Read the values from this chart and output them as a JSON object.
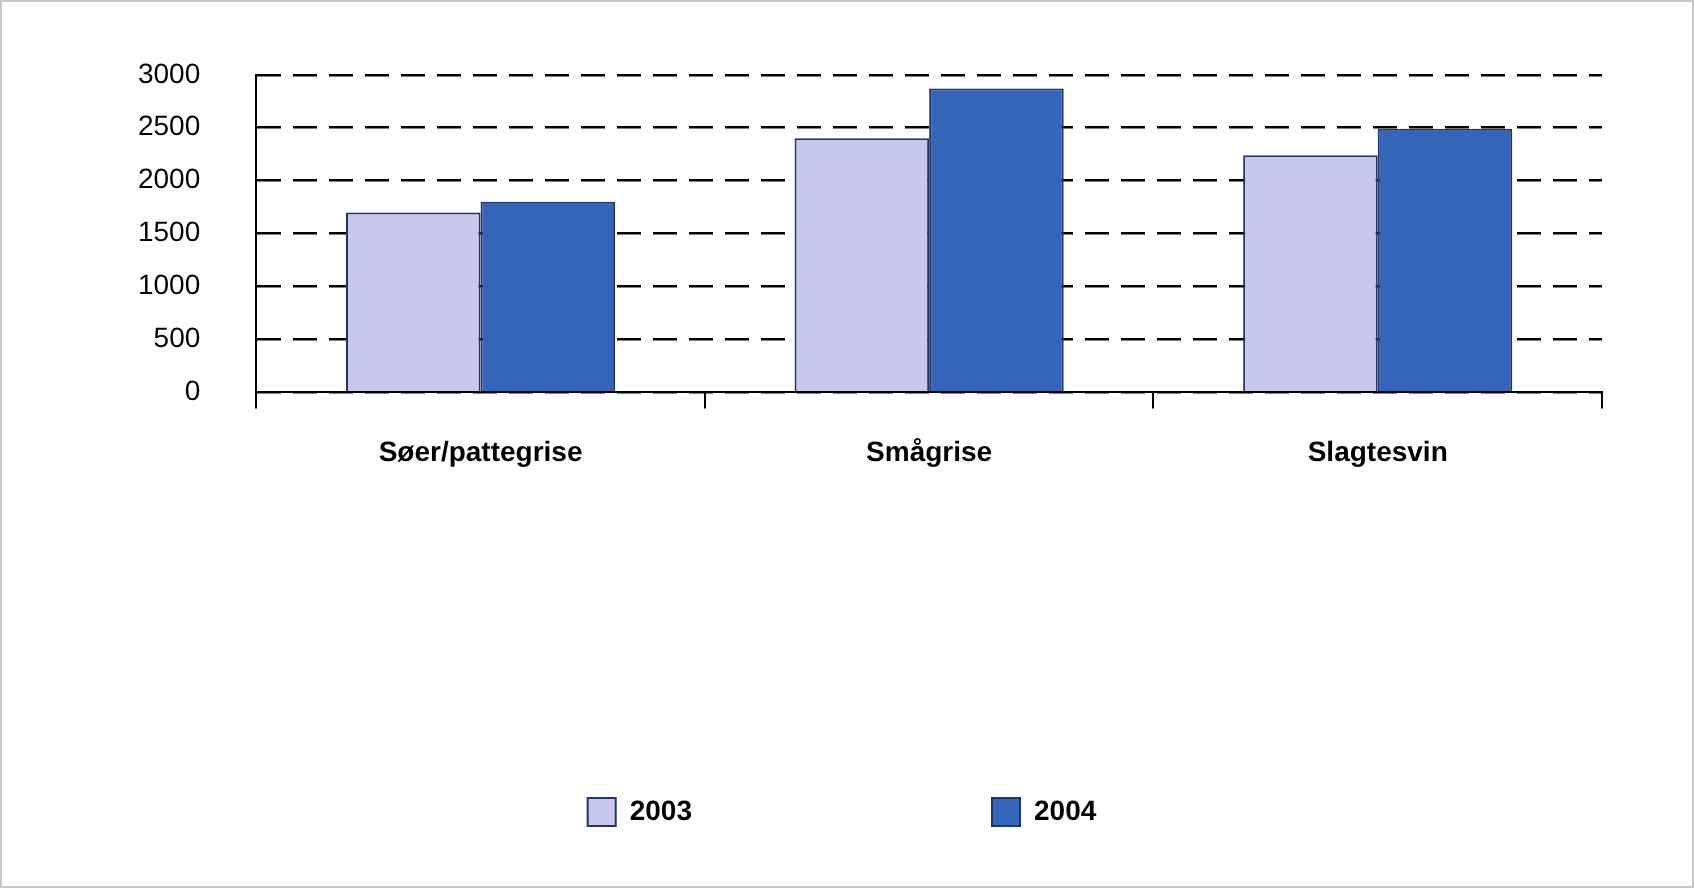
{
  "chart_data": {
    "type": "bar",
    "categories": [
      "Søer/pattegrise",
      "Smågrise",
      "Slagtesvin"
    ],
    "series": [
      {
        "name": "2003",
        "color": "#c8c8ec",
        "values": [
          1700,
          2400,
          2240
        ]
      },
      {
        "name": "2004",
        "color": "#3366bb",
        "values": [
          1800,
          2870,
          2490
        ]
      }
    ],
    "ylim": [
      0,
      3000
    ],
    "yticks": [
      0,
      500,
      1000,
      1500,
      2000,
      2500,
      3000
    ],
    "grid": "y",
    "legend": "bottom"
  }
}
